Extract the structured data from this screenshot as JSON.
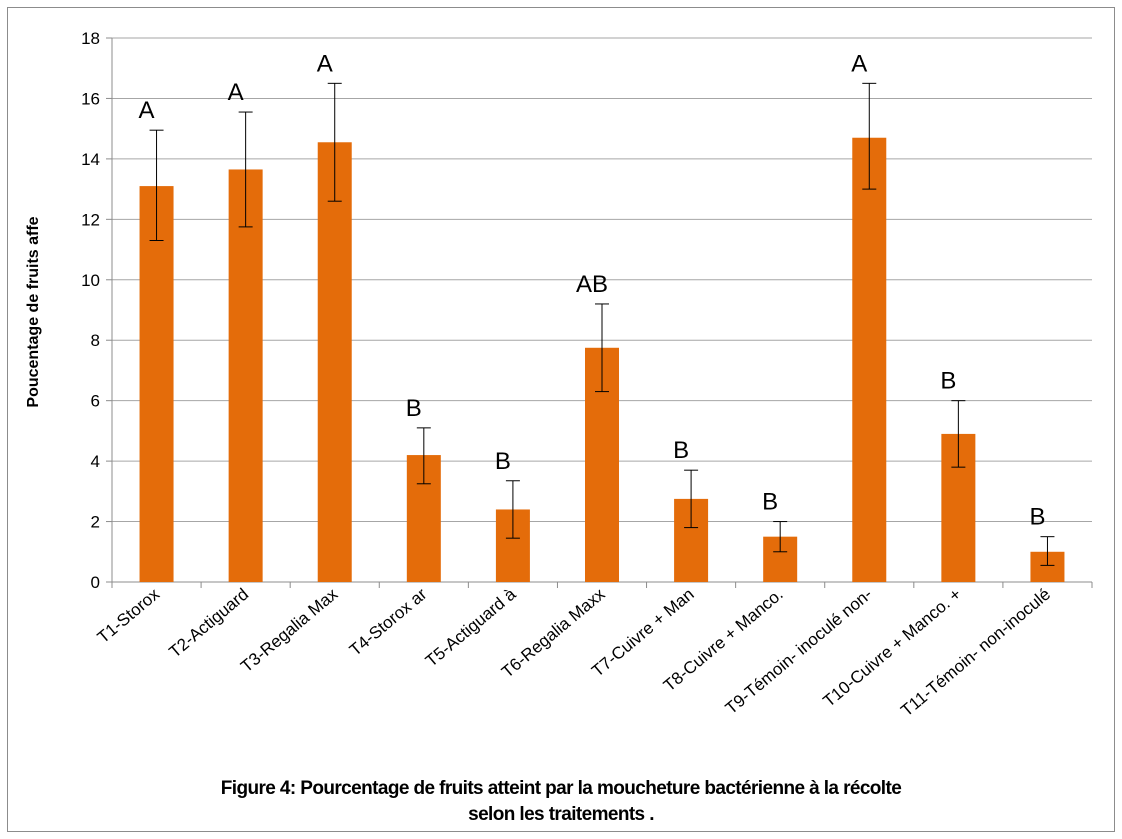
{
  "chart_data": {
    "type": "bar",
    "categories": [
      "T1-Storox",
      "T2-Actiguard",
      "T3-Regalia Max",
      "T4-Storox ar",
      "T5-Actiguard à",
      "T6-Regalia Maxx",
      "T7-Cuivre + Man",
      "T8-Cuivre + Manco.",
      "T9-Témoin- inoculé non-",
      "T10-Cuivre + Manco. +",
      "T11-Témoin- non-inoculé"
    ],
    "values": [
      13.1,
      13.65,
      14.55,
      4.2,
      2.4,
      7.75,
      2.75,
      1.5,
      14.7,
      4.9,
      1.0
    ],
    "error_low": [
      11.3,
      11.75,
      12.6,
      3.25,
      1.45,
      6.3,
      1.8,
      1.0,
      13.0,
      3.8,
      0.55
    ],
    "error_high": [
      14.95,
      15.55,
      16.5,
      5.1,
      3.35,
      9.2,
      3.7,
      2.0,
      16.5,
      6.0,
      1.5
    ],
    "letters": [
      "A",
      "A",
      "A",
      "B",
      "B",
      "AB",
      "B",
      "B",
      "A",
      "B",
      "B"
    ],
    "ylabel": "Poucentage de fruits  affe",
    "ylim": [
      0,
      18
    ],
    "yticks": [
      0,
      2,
      4,
      6,
      8,
      10,
      12,
      14,
      16,
      18
    ],
    "grid": true,
    "legend": "none",
    "bar_color": "#E46C0A"
  },
  "caption": {
    "line1": "Figure 4: Pourcentage de fruits atteint par la moucheture bactérienne à la récolte",
    "line2": "selon les traitements ."
  }
}
